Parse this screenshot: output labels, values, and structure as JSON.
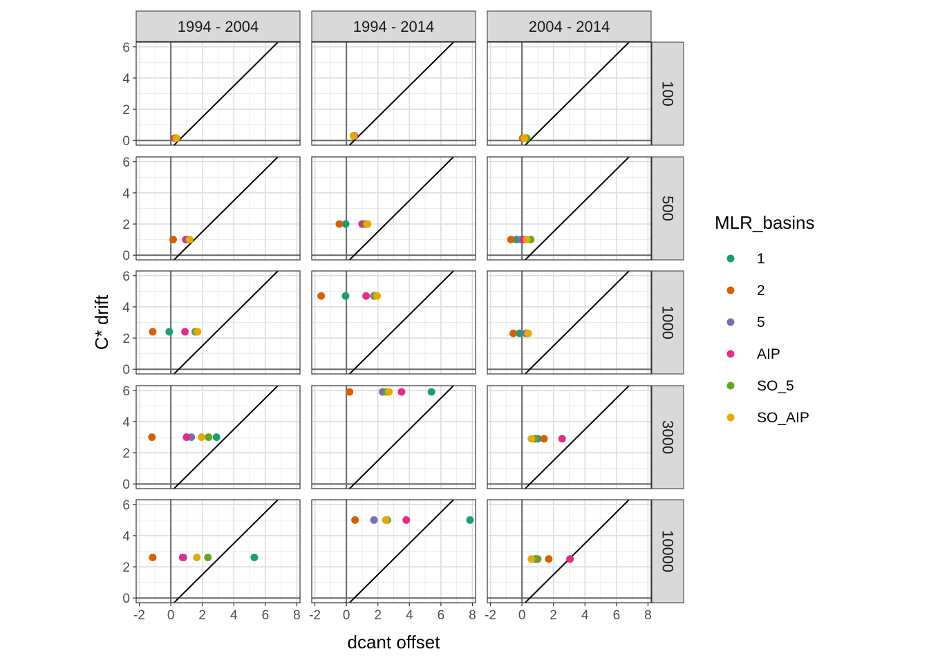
{
  "chart_data": {
    "type": "scatter",
    "title": "",
    "xlabel": "dcant offset",
    "ylabel": "C* drift",
    "xlim": [
      -2.2,
      8.2
    ],
    "ylim": [
      -0.3,
      6.3
    ],
    "x_ticks": [
      -2,
      0,
      2,
      4,
      6,
      8
    ],
    "y_ticks": [
      0,
      2,
      4,
      6
    ],
    "grid": true,
    "reference_lines": {
      "hline": 0,
      "vline": 0,
      "diagonal": {
        "intercept": 0.5,
        "slope": 1
      }
    },
    "facet_columns": [
      "1994 - 2004",
      "1994 - 2014",
      "2004 - 2014"
    ],
    "facet_rows": [
      "100",
      "500",
      "1000",
      "3000",
      "10000"
    ],
    "legend": {
      "title": "MLR_basins",
      "placement": "right",
      "entries": [
        {
          "label": "1",
          "color": "#1B9E77"
        },
        {
          "label": "2",
          "color": "#D95F02"
        },
        {
          "label": "5",
          "color": "#7570B3"
        },
        {
          "label": "AIP",
          "color": "#E7298A"
        },
        {
          "label": "SO_5",
          "color": "#66A61E"
        },
        {
          "label": "SO_AIP",
          "color": "#E6AB02"
        }
      ]
    },
    "panels": [
      {
        "col": "1994 - 2004",
        "row": "100",
        "points": [
          {
            "basin": "1",
            "x": 0.3,
            "y": 0.15
          },
          {
            "basin": "2",
            "x": 0.25,
            "y": 0.15
          },
          {
            "basin": "5",
            "x": 0.3,
            "y": 0.15
          },
          {
            "basin": "AIP",
            "x": 0.3,
            "y": 0.15
          },
          {
            "basin": "SO_5",
            "x": 0.35,
            "y": 0.15
          },
          {
            "basin": "SO_AIP",
            "x": 0.35,
            "y": 0.15
          }
        ]
      },
      {
        "col": "1994 - 2014",
        "row": "100",
        "points": [
          {
            "basin": "1",
            "x": 0.5,
            "y": 0.3
          },
          {
            "basin": "2",
            "x": 0.45,
            "y": 0.3
          },
          {
            "basin": "5",
            "x": 0.5,
            "y": 0.3
          },
          {
            "basin": "AIP",
            "x": 0.5,
            "y": 0.3
          },
          {
            "basin": "SO_5",
            "x": 0.45,
            "y": 0.3
          },
          {
            "basin": "SO_AIP",
            "x": 0.45,
            "y": 0.3
          }
        ]
      },
      {
        "col": "2004 - 2014",
        "row": "100",
        "points": [
          {
            "basin": "1",
            "x": 0.25,
            "y": 0.15
          },
          {
            "basin": "2",
            "x": 0.05,
            "y": 0.15
          },
          {
            "basin": "5",
            "x": 0.2,
            "y": 0.15
          },
          {
            "basin": "AIP",
            "x": 0.2,
            "y": 0.15
          },
          {
            "basin": "SO_5",
            "x": 0.3,
            "y": 0.15
          },
          {
            "basin": "SO_AIP",
            "x": 0.15,
            "y": 0.15
          }
        ]
      },
      {
        "col": "1994 - 2004",
        "row": "500",
        "points": [
          {
            "basin": "1",
            "x": 1.1,
            "y": 1.0
          },
          {
            "basin": "2",
            "x": 0.15,
            "y": 1.0
          },
          {
            "basin": "5",
            "x": 1.05,
            "y": 1.0
          },
          {
            "basin": "AIP",
            "x": 0.95,
            "y": 1.0
          },
          {
            "basin": "SO_5",
            "x": 1.15,
            "y": 1.0
          },
          {
            "basin": "SO_AIP",
            "x": 1.2,
            "y": 1.0
          }
        ]
      },
      {
        "col": "1994 - 2014",
        "row": "500",
        "points": [
          {
            "basin": "1",
            "x": -0.05,
            "y": 2.0
          },
          {
            "basin": "2",
            "x": -0.45,
            "y": 2.0
          },
          {
            "basin": "5",
            "x": 1.1,
            "y": 2.0
          },
          {
            "basin": "AIP",
            "x": 1.0,
            "y": 2.0
          },
          {
            "basin": "SO_5",
            "x": 1.25,
            "y": 2.0
          },
          {
            "basin": "SO_AIP",
            "x": 1.35,
            "y": 2.0
          }
        ]
      },
      {
        "col": "2004 - 2014",
        "row": "500",
        "points": [
          {
            "basin": "1",
            "x": -0.35,
            "y": 1.0
          },
          {
            "basin": "2",
            "x": -0.7,
            "y": 1.0
          },
          {
            "basin": "5",
            "x": -0.05,
            "y": 1.0
          },
          {
            "basin": "AIP",
            "x": 0.1,
            "y": 1.0
          },
          {
            "basin": "SO_5",
            "x": 0.55,
            "y": 1.0
          },
          {
            "basin": "SO_AIP",
            "x": 0.3,
            "y": 1.0
          }
        ]
      },
      {
        "col": "1994 - 2004",
        "row": "1000",
        "points": [
          {
            "basin": "1",
            "x": -0.1,
            "y": 2.4
          },
          {
            "basin": "2",
            "x": -1.15,
            "y": 2.4
          },
          {
            "basin": "5",
            "x": 1.55,
            "y": 2.4
          },
          {
            "basin": "AIP",
            "x": 0.9,
            "y": 2.4
          },
          {
            "basin": "SO_5",
            "x": 1.6,
            "y": 2.4
          },
          {
            "basin": "SO_AIP",
            "x": 1.7,
            "y": 2.4
          }
        ]
      },
      {
        "col": "1994 - 2014",
        "row": "1000",
        "points": [
          {
            "basin": "1",
            "x": -0.05,
            "y": 4.7
          },
          {
            "basin": "2",
            "x": -1.6,
            "y": 4.7
          },
          {
            "basin": "5",
            "x": 1.75,
            "y": 4.7
          },
          {
            "basin": "AIP",
            "x": 1.25,
            "y": 4.7
          },
          {
            "basin": "SO_5",
            "x": 1.85,
            "y": 4.7
          },
          {
            "basin": "SO_AIP",
            "x": 1.95,
            "y": 4.7
          }
        ]
      },
      {
        "col": "2004 - 2014",
        "row": "1000",
        "points": [
          {
            "basin": "1",
            "x": -0.15,
            "y": 2.3
          },
          {
            "basin": "2",
            "x": -0.55,
            "y": 2.3
          },
          {
            "basin": "5",
            "x": 0.25,
            "y": 2.3
          },
          {
            "basin": "AIP",
            "x": 0.3,
            "y": 2.3
          },
          {
            "basin": "SO_5",
            "x": 0.35,
            "y": 2.3
          },
          {
            "basin": "SO_AIP",
            "x": 0.4,
            "y": 2.3
          }
        ]
      },
      {
        "col": "1994 - 2004",
        "row": "3000",
        "points": [
          {
            "basin": "1",
            "x": 2.9,
            "y": 3.0
          },
          {
            "basin": "2",
            "x": -1.2,
            "y": 3.0
          },
          {
            "basin": "5",
            "x": 1.3,
            "y": 3.0
          },
          {
            "basin": "AIP",
            "x": 1.0,
            "y": 3.0
          },
          {
            "basin": "SO_5",
            "x": 2.4,
            "y": 3.0
          },
          {
            "basin": "SO_AIP",
            "x": 1.95,
            "y": 3.0
          }
        ]
      },
      {
        "col": "1994 - 2014",
        "row": "3000",
        "points": [
          {
            "basin": "1",
            "x": 5.4,
            "y": 5.9
          },
          {
            "basin": "2",
            "x": 0.2,
            "y": 5.9
          },
          {
            "basin": "5",
            "x": 2.3,
            "y": 5.9
          },
          {
            "basin": "AIP",
            "x": 3.5,
            "y": 5.9
          },
          {
            "basin": "SO_5",
            "x": 2.55,
            "y": 5.9
          },
          {
            "basin": "SO_AIP",
            "x": 2.7,
            "y": 5.9
          }
        ]
      },
      {
        "col": "2004 - 2014",
        "row": "3000",
        "points": [
          {
            "basin": "1",
            "x": 1.0,
            "y": 2.9
          },
          {
            "basin": "2",
            "x": 1.4,
            "y": 2.9
          },
          {
            "basin": "5",
            "x": 0.85,
            "y": 2.9
          },
          {
            "basin": "AIP",
            "x": 2.55,
            "y": 2.9
          },
          {
            "basin": "SO_5",
            "x": 0.8,
            "y": 2.9
          },
          {
            "basin": "SO_AIP",
            "x": 0.6,
            "y": 2.9
          }
        ]
      },
      {
        "col": "1994 - 2004",
        "row": "10000",
        "points": [
          {
            "basin": "1",
            "x": 5.3,
            "y": 2.6
          },
          {
            "basin": "2",
            "x": -1.15,
            "y": 2.6
          },
          {
            "basin": "5",
            "x": 0.8,
            "y": 2.6
          },
          {
            "basin": "AIP",
            "x": 0.75,
            "y": 2.6
          },
          {
            "basin": "SO_5",
            "x": 2.35,
            "y": 2.6
          },
          {
            "basin": "SO_AIP",
            "x": 1.65,
            "y": 2.6
          }
        ]
      },
      {
        "col": "1994 - 2014",
        "row": "10000",
        "points": [
          {
            "basin": "1",
            "x": 7.85,
            "y": 5.0
          },
          {
            "basin": "2",
            "x": 0.55,
            "y": 5.0
          },
          {
            "basin": "5",
            "x": 1.75,
            "y": 5.0
          },
          {
            "basin": "AIP",
            "x": 3.8,
            "y": 5.0
          },
          {
            "basin": "SO_5",
            "x": 2.6,
            "y": 5.0
          },
          {
            "basin": "SO_AIP",
            "x": 2.5,
            "y": 5.0
          }
        ]
      },
      {
        "col": "2004 - 2014",
        "row": "10000",
        "points": [
          {
            "basin": "1",
            "x": 0.85,
            "y": 2.5
          },
          {
            "basin": "2",
            "x": 1.7,
            "y": 2.5
          },
          {
            "basin": "5",
            "x": 0.9,
            "y": 2.5
          },
          {
            "basin": "AIP",
            "x": 3.05,
            "y": 2.5
          },
          {
            "basin": "SO_5",
            "x": 1.0,
            "y": 2.5
          },
          {
            "basin": "SO_AIP",
            "x": 0.6,
            "y": 2.5
          }
        ]
      }
    ]
  }
}
